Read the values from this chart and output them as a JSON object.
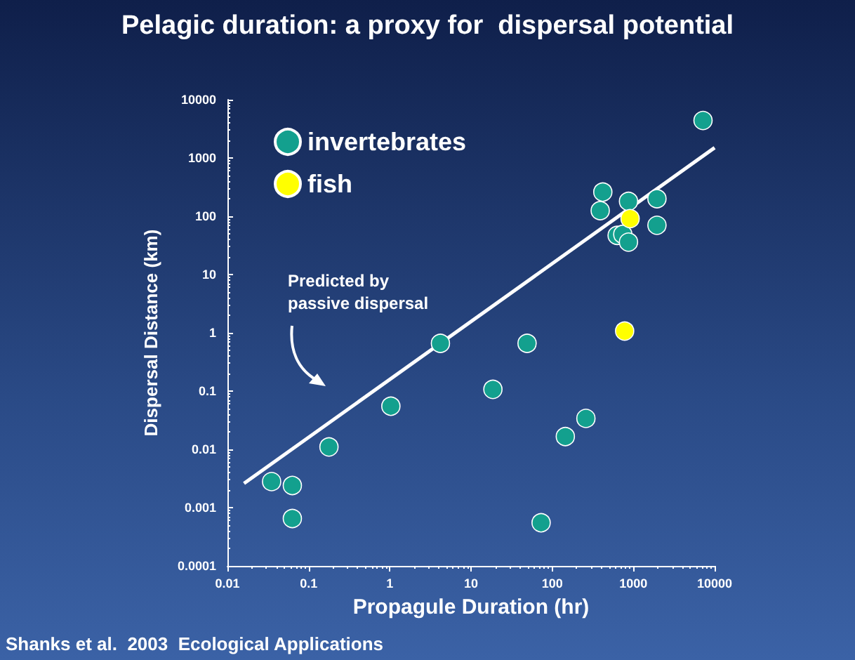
{
  "chart_data": {
    "type": "scatter",
    "title": "Pelagic duration: a proxy for  dispersal potential",
    "xlabel": "Propagule Duration (hr)",
    "ylabel": "Dispersal Distance (km)",
    "log": "xy",
    "xlim": [
      0.01,
      10000
    ],
    "ylim": [
      0.0001,
      10000
    ],
    "xticks": [
      0.01,
      0.1,
      1,
      10,
      100,
      1000,
      10000
    ],
    "yticks": [
      0.0001,
      0.001,
      0.01,
      0.1,
      1,
      10,
      100,
      1000,
      10000
    ],
    "grid": false,
    "legend": "top left",
    "marker": "circle",
    "annotations": [
      "Predicted by passive dispersal",
      "Shanks et al.  2003  Ecological Applications"
    ],
    "series": [
      {
        "name": "invertebrates",
        "color": "#13a08e",
        "x": [
          7200,
          420,
          390,
          870,
          1950,
          1950,
          630,
          740,
          870,
          4.2,
          49,
          18.6,
          1.03,
          260,
          145,
          0.178,
          0.035,
          0.063,
          0.063,
          73
        ],
        "values": [
          4400,
          260,
          125,
          180,
          200,
          70,
          47,
          49,
          36,
          0.66,
          0.66,
          0.107,
          0.055,
          0.034,
          0.0166,
          0.011,
          0.0028,
          0.0024,
          0.00065,
          0.00055
        ]
      },
      {
        "name": "fish",
        "color": "#ffff00",
        "x": [
          910,
          780
        ],
        "values": [
          91,
          1.07
        ]
      },
      {
        "type": "line",
        "marker": "none",
        "color": "#ffffff",
        "x": [
          0.016,
          10000
        ],
        "values": [
          0.0026,
          1500
        ]
      }
    ]
  }
}
